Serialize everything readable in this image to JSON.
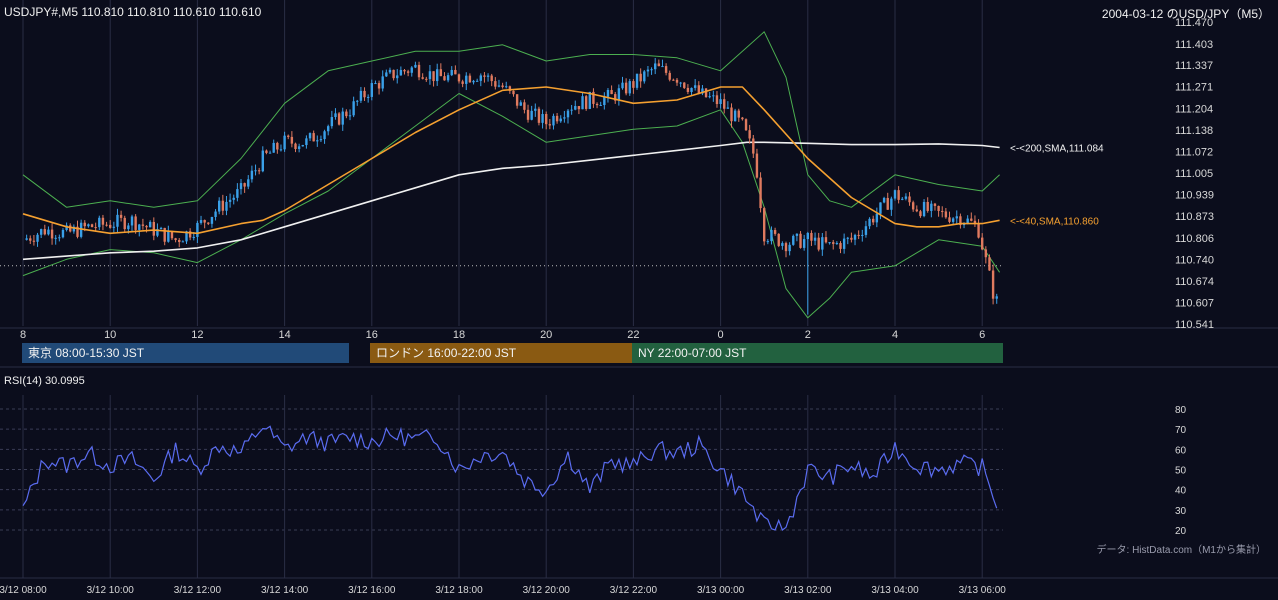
{
  "header": {
    "symbol_info": "USDJPY#,M5 110.810 110.810 110.610 110.610",
    "title_right": "2004-03-12 のUSD/JPY（M5）",
    "rsi_label": "RSI(14) 30.0995",
    "source_note": "データ: HistData.com（M1から集計）"
  },
  "sessions": {
    "tokyo": "東京 08:00-15:30 JST",
    "london": "ロンドン 16:00-22:00 JST",
    "ny": "NY 22:00-07:00 JST"
  },
  "colors": {
    "background": "#0b0d1c",
    "grid": "#2a2d45",
    "bull": "#3aa0e8",
    "bear": "#e07a5f",
    "sma40": "#f5a030",
    "sma200": "#f0f0f0",
    "bollinger": "#4caf50",
    "rsi": "#5a6cf0",
    "axis_text": "#d8d8d8"
  },
  "chart_data": [
    {
      "type": "candlestick",
      "symbol": "USDJPY",
      "timeframe": "M5",
      "y_ticks": [
        "111.470",
        "111.403",
        "111.337",
        "111.271",
        "111.204",
        "111.138",
        "111.072",
        "111.005",
        "110.939",
        "110.873",
        "110.806",
        "110.740",
        "110.674",
        "110.607",
        "110.541"
      ],
      "ylim": [
        110.541,
        111.47
      ],
      "x_ticks": [
        "8",
        "10",
        "12",
        "14",
        "16",
        "18",
        "20",
        "22",
        "0",
        "2",
        "4",
        "6"
      ],
      "price_series": {
        "x_hours": [
          8.0,
          8.5,
          9.0,
          9.5,
          10.0,
          10.5,
          11.0,
          11.5,
          12.0,
          12.5,
          13.0,
          13.5,
          14.0,
          14.5,
          15.0,
          15.5,
          16.0,
          16.5,
          17.0,
          17.5,
          18.0,
          18.5,
          19.0,
          19.5,
          20.0,
          20.5,
          21.0,
          21.5,
          22.0,
          22.5,
          23.0,
          23.5,
          24.0,
          24.5,
          24.8,
          25.0,
          25.5,
          26.0,
          26.5,
          27.0,
          27.5,
          28.0,
          28.5,
          29.0,
          29.5,
          29.9,
          30.3
        ],
        "close": [
          110.8,
          110.83,
          110.82,
          110.84,
          110.85,
          110.86,
          110.83,
          110.8,
          110.84,
          110.9,
          110.95,
          111.05,
          111.1,
          111.1,
          111.15,
          111.2,
          111.27,
          111.31,
          111.33,
          111.3,
          111.3,
          111.31,
          111.27,
          111.2,
          111.16,
          111.21,
          111.23,
          111.24,
          111.28,
          111.33,
          111.3,
          111.25,
          111.22,
          111.15,
          111.05,
          110.82,
          110.79,
          110.8,
          110.78,
          110.8,
          110.87,
          110.94,
          110.9,
          110.88,
          110.87,
          110.84,
          110.61
        ]
      },
      "sma200": {
        "x_hours": [
          8.0,
          9.0,
          10.0,
          11.0,
          12.0,
          13.0,
          14.0,
          15.0,
          16.0,
          17.0,
          18.0,
          19.0,
          20.0,
          21.0,
          22.0,
          23.0,
          24.0,
          24.6,
          25.0,
          26.0,
          27.0,
          28.0,
          29.0,
          30.0,
          30.4
        ],
        "values": [
          110.74,
          110.75,
          110.76,
          110.765,
          110.775,
          110.8,
          110.84,
          110.88,
          110.92,
          110.96,
          111.0,
          111.02,
          111.03,
          111.045,
          111.06,
          111.075,
          111.09,
          111.1,
          111.1,
          111.097,
          111.093,
          111.093,
          111.095,
          111.09,
          111.084
        ]
      },
      "sma40": {
        "x_hours": [
          8.0,
          9.0,
          10.0,
          11.0,
          12.0,
          13.0,
          13.5,
          14.0,
          15.0,
          16.0,
          17.0,
          18.0,
          19.0,
          20.0,
          21.0,
          22.0,
          23.0,
          24.0,
          24.5,
          25.0,
          26.0,
          27.0,
          28.0,
          28.5,
          29.0,
          29.5,
          30.0,
          30.4
        ],
        "values": [
          110.88,
          110.84,
          110.82,
          110.83,
          110.82,
          110.85,
          110.86,
          110.89,
          110.97,
          111.05,
          111.13,
          111.2,
          111.26,
          111.27,
          111.25,
          111.22,
          111.23,
          111.27,
          111.27,
          111.2,
          111.05,
          110.93,
          110.85,
          110.84,
          110.84,
          110.85,
          110.85,
          110.86
        ]
      },
      "bollinger_upper": {
        "x_hours": [
          8.0,
          9.0,
          10.0,
          11.0,
          12.0,
          13.0,
          14.0,
          15.0,
          16.0,
          17.0,
          18.0,
          19.0,
          20.0,
          21.0,
          22.0,
          23.0,
          24.0,
          25.0,
          25.5,
          26.0,
          26.5,
          27.0,
          28.0,
          29.0,
          30.0,
          30.4
        ],
        "values": [
          111.0,
          110.9,
          110.92,
          110.9,
          110.92,
          111.05,
          111.22,
          111.32,
          111.35,
          111.38,
          111.38,
          111.4,
          111.35,
          111.37,
          111.37,
          111.36,
          111.32,
          111.44,
          111.3,
          111.0,
          110.92,
          110.9,
          111.0,
          110.97,
          110.95,
          111.0
        ]
      },
      "bollinger_lower": {
        "x_hours": [
          8.0,
          9.0,
          10.0,
          11.0,
          12.0,
          13.0,
          14.0,
          15.0,
          16.0,
          17.0,
          18.0,
          19.0,
          20.0,
          21.0,
          22.0,
          23.0,
          24.0,
          24.5,
          25.0,
          25.5,
          26.0,
          26.5,
          27.0,
          28.0,
          29.0,
          30.0,
          30.4
        ],
        "values": [
          110.69,
          110.74,
          110.77,
          110.76,
          110.73,
          110.8,
          110.88,
          110.95,
          111.05,
          111.15,
          111.25,
          111.18,
          111.1,
          111.12,
          111.14,
          111.15,
          111.2,
          111.1,
          110.9,
          110.65,
          110.56,
          110.62,
          110.7,
          110.72,
          110.8,
          110.78,
          110.7
        ]
      },
      "annotations": [
        "<-<200,SMA,111.084",
        "<-<40,SMA,110.860"
      ]
    },
    {
      "type": "line",
      "name": "RSI(14)",
      "y_ticks": [
        "80",
        "70",
        "60",
        "50",
        "40",
        "30",
        "20"
      ],
      "ylim": [
        20,
        80
      ],
      "x_tick_labels": [
        "3/12 08:00",
        "3/12 10:00",
        "3/12 12:00",
        "3/12 14:00",
        "3/12 16:00",
        "3/12 18:00",
        "3/12 20:00",
        "3/12 22:00",
        "3/13 00:00",
        "3/13 02:00",
        "3/13 04:00",
        "3/13 06:00"
      ],
      "x_hours": [
        8.0,
        8.5,
        9.0,
        9.5,
        10.0,
        10.5,
        11.0,
        11.5,
        12.0,
        12.5,
        13.0,
        13.5,
        14.0,
        14.5,
        15.0,
        15.5,
        16.0,
        16.5,
        17.0,
        17.5,
        18.0,
        18.5,
        19.0,
        19.5,
        20.0,
        20.5,
        21.0,
        21.5,
        22.0,
        22.5,
        23.0,
        23.5,
        24.0,
        24.5,
        25.0,
        25.5,
        26.0,
        26.5,
        27.0,
        27.5,
        28.0,
        28.5,
        29.0,
        29.5,
        30.0,
        30.4
      ],
      "values": [
        30,
        55,
        52,
        58,
        52,
        55,
        45,
        60,
        50,
        62,
        58,
        72,
        60,
        66,
        63,
        66,
        64,
        67,
        65,
        66,
        50,
        57,
        59,
        45,
        40,
        57,
        40,
        54,
        52,
        60,
        58,
        62,
        50,
        38,
        22,
        21,
        50,
        46,
        52,
        46,
        61,
        52,
        50,
        53,
        51,
        30.1
      ]
    }
  ]
}
